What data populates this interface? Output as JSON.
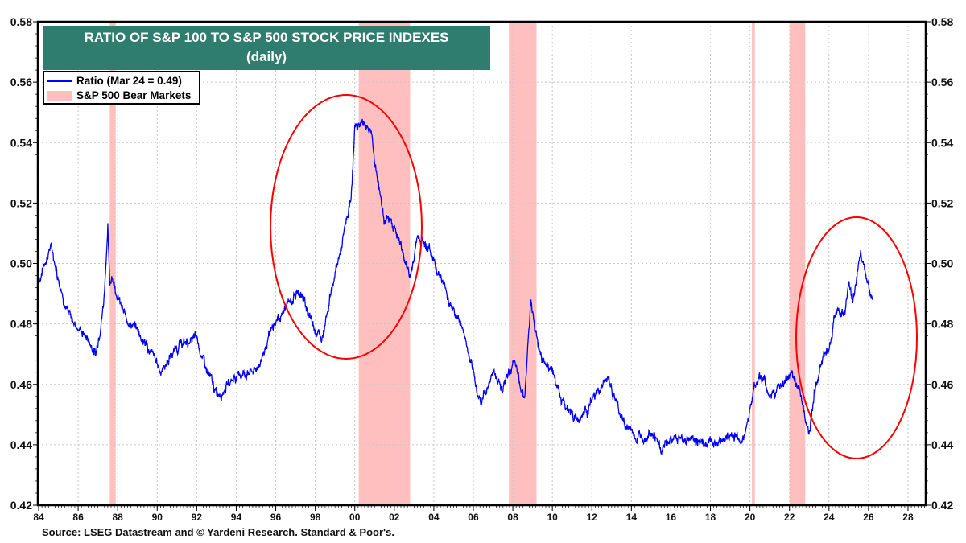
{
  "chart_data": {
    "type": "line",
    "title": "RATIO OF S&P 100 TO S&P 500 STOCK PRICE INDEXES",
    "subtitle": "(daily)",
    "xlabel": "",
    "ylabel": "",
    "xlim": [
      1984,
      2029
    ],
    "ylim": [
      0.42,
      0.58
    ],
    "x_tick_labels": [
      "84",
      "86",
      "88",
      "90",
      "92",
      "94",
      "96",
      "98",
      "00",
      "02",
      "04",
      "06",
      "08",
      "10",
      "12",
      "14",
      "16",
      "18",
      "20",
      "22",
      "24",
      "26",
      "28"
    ],
    "y_tick_labels": [
      "0.42",
      "0.44",
      "0.46",
      "0.48",
      "0.50",
      "0.52",
      "0.54",
      "0.56",
      "0.58"
    ],
    "grid": true,
    "legend_placement": "top-left",
    "series": [
      {
        "name": "Ratio (Mar 24 = 0.49)",
        "color": "#0000ff",
        "x": [
          1984.0,
          1984.6,
          1985.5,
          1986.5,
          1986.9,
          1987.3,
          1987.5,
          1987.6,
          1987.7,
          1988.3,
          1989.0,
          1990.2,
          1991.0,
          1992.0,
          1992.5,
          1993.0,
          1994.0,
          1995.0,
          1996.0,
          1996.8,
          1997.2,
          1997.7,
          1998.3,
          1998.8,
          1999.3,
          1999.8,
          2000.0,
          2000.4,
          2000.8,
          2001.0,
          2001.5,
          2002.0,
          2002.5,
          2002.8,
          2003.2,
          2003.8,
          2004.3,
          2004.9,
          2005.5,
          2006.0,
          2006.4,
          2007.0,
          2007.5,
          2008.0,
          2008.6,
          2008.9,
          2009.3,
          2010.0,
          2010.5,
          2011.3,
          2012.0,
          2012.8,
          2013.5,
          2014.3,
          2015.0,
          2015.5,
          2016.0,
          2017.0,
          2018.0,
          2019.0,
          2019.7,
          2020.2,
          2020.5,
          2021.0,
          2021.5,
          2022.0,
          2022.5,
          2023.0,
          2023.3,
          2023.6,
          2024.0,
          2024.4,
          2024.8,
          2025.0,
          2025.2,
          2025.6,
          2026.0,
          2026.2
        ],
        "values": [
          0.494,
          0.506,
          0.483,
          0.475,
          0.47,
          0.488,
          0.513,
          0.492,
          0.4965,
          0.483,
          0.478,
          0.4645,
          0.4725,
          0.475,
          0.4645,
          0.4565,
          0.463,
          0.4645,
          0.4805,
          0.488,
          0.491,
          0.483,
          0.475,
          0.491,
          0.5045,
          0.5205,
          0.5445,
          0.547,
          0.5445,
          0.534,
          0.515,
          0.5125,
          0.502,
          0.495,
          0.51,
          0.5045,
          0.4965,
          0.486,
          0.478,
          0.462,
          0.454,
          0.4645,
          0.459,
          0.467,
          0.4565,
          0.486,
          0.4725,
          0.4645,
          0.454,
          0.4485,
          0.454,
          0.462,
          0.4485,
          0.442,
          0.446,
          0.438,
          0.442,
          0.442,
          0.4405,
          0.443,
          0.442,
          0.459,
          0.463,
          0.4565,
          0.459,
          0.462,
          0.459,
          0.4435,
          0.458,
          0.468,
          0.473,
          0.485,
          0.484,
          0.4925,
          0.486,
          0.5045,
          0.495,
          0.488
        ]
      }
    ],
    "bands": {
      "name": "S&P 500 Bear Markets",
      "color": "#ffbfbf",
      "ranges": [
        [
          1987.6,
          1987.9
        ],
        [
          2000.2,
          2002.8
        ],
        [
          2007.8,
          2009.2
        ],
        [
          2020.1,
          2020.25
        ],
        [
          2022.0,
          2022.8
        ]
      ]
    },
    "annotations": [
      {
        "type": "ellipse",
        "color": "#ff0000",
        "around": [
          1998.5,
          2003.4
        ]
      },
      {
        "type": "ellipse",
        "color": "#ff0000",
        "around": [
          2023.0,
          2029.0
        ]
      }
    ]
  },
  "legend": {
    "series_label": "Ratio (Mar 24 = 0.49)",
    "band_label": "S&P 500 Bear Markets"
  },
  "source": "Source: LSEG Datastream and © Yardeni Research. Standard & Poor's."
}
